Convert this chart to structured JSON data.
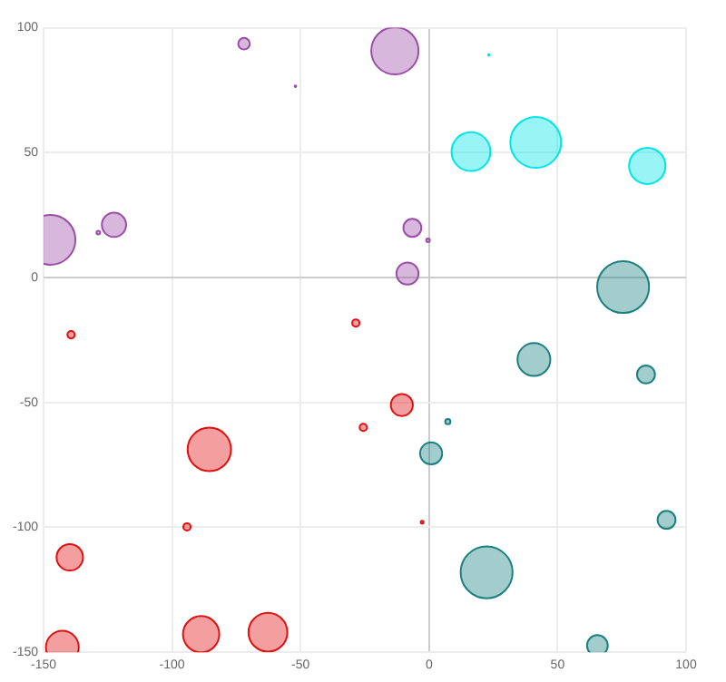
{
  "chart_data": {
    "type": "bubble",
    "xlim": [
      -150,
      100
    ],
    "xticks": [
      -150,
      -100,
      -50,
      0,
      50,
      100
    ],
    "ylim": [
      -150,
      100
    ],
    "yticks": [
      -150,
      -100,
      -50,
      0,
      50,
      100
    ],
    "grid": true,
    "series": [
      {
        "color": "#9b4ea8",
        "x": [
          -147.3,
          -122.6,
          -128.7,
          -72,
          -52,
          -13.3,
          -6.5,
          -0.4,
          -8.4
        ],
        "values": [
          15.1,
          21.1,
          18,
          93.6,
          76.6,
          90.8,
          19.9,
          14.9,
          1.6
        ],
        "sizes": [
          0.92,
          0.22,
          0.005,
          0.05,
          0.001,
          0.83,
          0.12,
          0.005,
          0.18
        ]
      },
      {
        "color": "#00e5e5",
        "x": [
          23.3,
          16.3,
          41.5,
          84.9
        ],
        "values": [
          89.1,
          50.4,
          54.1,
          44.7
        ],
        "sizes": [
          0.001,
          0.56,
          0.96,
          0.49
        ]
      },
      {
        "color": "#1a8080",
        "x": [
          75.5,
          40.8,
          84.4,
          7.3,
          0.8,
          92.4,
          22.4,
          65.5
        ],
        "values": [
          -3.8,
          -32.8,
          -38.8,
          -57.7,
          -70.4,
          -97,
          -118,
          -147.3
        ],
        "sizes": [
          1,
          0.4,
          0.12,
          0.01,
          0.18,
          0.12,
          1,
          0.16
        ]
      },
      {
        "color": "#e01010",
        "x": [
          -139.3,
          -28.5,
          -10.6,
          -25.6,
          -2.7,
          -85.5,
          -94.2,
          -139.8,
          -142.7,
          -88.7,
          -62.7
        ],
        "values": [
          -22.9,
          -18.2,
          -51,
          -60,
          -97.9,
          -68.8,
          -99.8,
          -112,
          -148,
          -142.8,
          -142
        ],
        "sizes": [
          0.02,
          0.02,
          0.18,
          0.02,
          0.003,
          0.7,
          0.02,
          0.26,
          0.4,
          0.49,
          0.56
        ]
      }
    ]
  }
}
